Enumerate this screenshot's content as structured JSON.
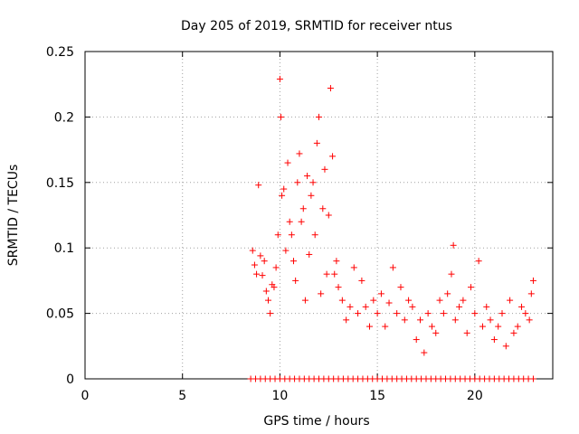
{
  "chart_data": {
    "type": "scatter",
    "title": "Day 205 of 2019, SRMTID for receiver ntus",
    "xlabel": "GPS time / hours",
    "ylabel": "SRMTID / TECUs",
    "xlim": [
      0,
      24
    ],
    "ylim": [
      0,
      0.25
    ],
    "x_ticks": [
      0,
      5,
      10,
      15,
      20
    ],
    "x_tick_labels": [
      "0",
      "5",
      "10",
      "15",
      "20"
    ],
    "y_ticks": [
      0,
      0.05,
      0.1,
      0.15,
      0.2,
      0.25
    ],
    "y_tick_labels": [
      "0",
      "0.05",
      "0.1",
      "0.15",
      "0.2",
      "0.25"
    ],
    "grid": true,
    "marker": "+",
    "series_color": "#ff0000",
    "time_range_hours": [
      8.5,
      23.0
    ],
    "series": [
      {
        "name": "SRMTID",
        "x": [
          8.6,
          8.7,
          8.8,
          8.9,
          9.0,
          9.1,
          9.2,
          9.3,
          9.4,
          9.5,
          9.6,
          9.7,
          9.8,
          9.9,
          10.0,
          10.05,
          10.1,
          10.2,
          10.3,
          10.4,
          10.5,
          10.6,
          10.7,
          10.8,
          10.9,
          11.0,
          11.1,
          11.2,
          11.3,
          11.4,
          11.5,
          11.6,
          11.7,
          11.8,
          11.9,
          12.0,
          12.1,
          12.2,
          12.3,
          12.4,
          12.5,
          12.6,
          12.7,
          12.8,
          12.9,
          13.0,
          13.2,
          13.4,
          13.6,
          13.8,
          14.0,
          14.2,
          14.4,
          14.6,
          14.8,
          15.0,
          15.2,
          15.4,
          15.6,
          15.8,
          16.0,
          16.2,
          16.4,
          16.6,
          16.8,
          17.0,
          17.2,
          17.4,
          17.6,
          17.8,
          18.0,
          18.2,
          18.4,
          18.6,
          18.8,
          18.9,
          19.0,
          19.2,
          19.4,
          19.6,
          19.8,
          20.0,
          20.2,
          20.4,
          20.6,
          20.8,
          21.0,
          21.2,
          21.4,
          21.6,
          21.8,
          22.0,
          22.2,
          22.4,
          22.6,
          22.8,
          22.9,
          23.0
        ],
        "y": [
          0.098,
          0.087,
          0.08,
          0.148,
          0.094,
          0.079,
          0.09,
          0.067,
          0.06,
          0.05,
          0.072,
          0.07,
          0.085,
          0.11,
          0.229,
          0.2,
          0.14,
          0.145,
          0.098,
          0.165,
          0.12,
          0.11,
          0.09,
          0.075,
          0.15,
          0.172,
          0.12,
          0.13,
          0.06,
          0.155,
          0.095,
          0.14,
          0.15,
          0.11,
          0.18,
          0.2,
          0.065,
          0.13,
          0.16,
          0.08,
          0.125,
          0.222,
          0.17,
          0.08,
          0.09,
          0.07,
          0.06,
          0.045,
          0.055,
          0.085,
          0.05,
          0.075,
          0.055,
          0.04,
          0.06,
          0.05,
          0.065,
          0.04,
          0.058,
          0.085,
          0.05,
          0.07,
          0.045,
          0.06,
          0.055,
          0.03,
          0.045,
          0.02,
          0.05,
          0.04,
          0.035,
          0.06,
          0.05,
          0.065,
          0.08,
          0.102,
          0.045,
          0.055,
          0.06,
          0.035,
          0.07,
          0.05,
          0.09,
          0.04,
          0.055,
          0.045,
          0.03,
          0.04,
          0.05,
          0.025,
          0.06,
          0.035,
          0.04,
          0.055,
          0.05,
          0.045,
          0.065,
          0.075
        ]
      }
    ]
  }
}
